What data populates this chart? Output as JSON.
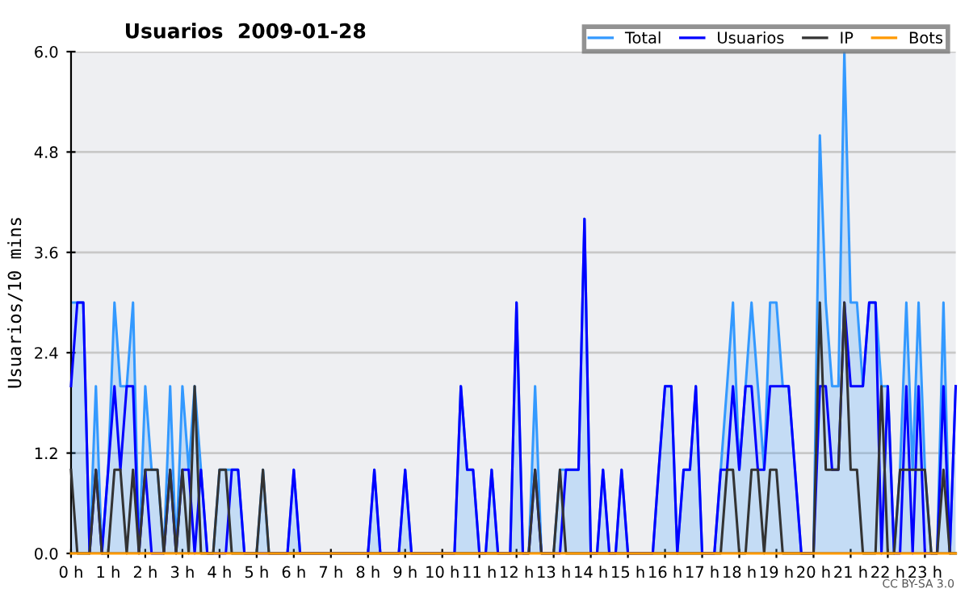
{
  "chart_data": {
    "type": "line",
    "title": "Usuarios  2009-01-28",
    "ylabel": "Usuarios/10 mins",
    "annotations": [
      "CC BY-SA 3.0"
    ],
    "x": [
      0,
      0.17,
      0.33,
      0.5,
      0.67,
      0.83,
      1,
      1.17,
      1.33,
      1.5,
      1.67,
      1.83,
      2,
      2.17,
      2.33,
      2.5,
      2.67,
      2.83,
      3,
      3.17,
      3.33,
      3.5,
      3.67,
      3.83,
      4,
      4.17,
      4.33,
      4.5,
      4.67,
      4.83,
      5,
      5.17,
      5.33,
      5.5,
      5.67,
      5.83,
      6,
      6.17,
      6.33,
      6.5,
      6.67,
      6.83,
      7,
      7.17,
      7.33,
      7.5,
      7.67,
      7.83,
      8,
      8.17,
      8.33,
      8.5,
      8.67,
      8.83,
      9,
      9.17,
      9.33,
      9.5,
      9.67,
      9.83,
      10,
      10.17,
      10.33,
      10.5,
      10.67,
      10.83,
      11,
      11.17,
      11.33,
      11.5,
      11.67,
      11.83,
      12,
      12.17,
      12.33,
      12.5,
      12.67,
      12.83,
      13,
      13.17,
      13.33,
      13.5,
      13.67,
      13.83,
      14,
      14.17,
      14.33,
      14.5,
      14.67,
      14.83,
      15,
      15.17,
      15.33,
      15.5,
      15.67,
      15.83,
      16,
      16.17,
      16.33,
      16.5,
      16.67,
      16.83,
      17,
      17.17,
      17.33,
      17.5,
      17.67,
      17.83,
      18,
      18.17,
      18.33,
      18.5,
      18.67,
      18.83,
      19,
      19.17,
      19.33,
      19.5,
      19.67,
      19.83,
      20,
      20.17,
      20.33,
      20.5,
      20.67,
      20.83,
      21,
      21.17,
      21.33,
      21.5,
      21.67,
      21.83,
      22,
      22.17,
      22.33,
      22.5,
      22.67,
      22.83,
      23,
      23.17,
      23.33,
      23.5,
      23.67,
      23.83
    ],
    "series": [
      {
        "name": "Total",
        "type": "area",
        "color": "#3399ff",
        "values": [
          3,
          3,
          3,
          0,
          2,
          0,
          1,
          3,
          2,
          2,
          3,
          0,
          2,
          1,
          1,
          0,
          2,
          0,
          2,
          1,
          2,
          1,
          0,
          0,
          1,
          1,
          1,
          1,
          0,
          0,
          0,
          1,
          0,
          0,
          0,
          0,
          1,
          0,
          0,
          0,
          0,
          0,
          0,
          0,
          0,
          0,
          0,
          0,
          0,
          1,
          0,
          0,
          0,
          0,
          1,
          0,
          0,
          0,
          0,
          0,
          0,
          0,
          0,
          2,
          1,
          1,
          0,
          0,
          1,
          0,
          0,
          0,
          3,
          0,
          0,
          2,
          0,
          0,
          0,
          1,
          1,
          1,
          1,
          4,
          0,
          0,
          1,
          0,
          0,
          1,
          0,
          0,
          0,
          0,
          0,
          1,
          2,
          2,
          0,
          1,
          1,
          2,
          0,
          0,
          0,
          1,
          2,
          3,
          1,
          2,
          3,
          2,
          1,
          3,
          3,
          2,
          2,
          1,
          0,
          0,
          0,
          5,
          3,
          2,
          2,
          6,
          3,
          3,
          2,
          3,
          3,
          2,
          2,
          0,
          1,
          3,
          1,
          3,
          1,
          0,
          0,
          3,
          0,
          2
        ]
      },
      {
        "name": "Usuarios",
        "color": "#0000ff",
        "values": [
          2,
          3,
          3,
          0,
          1,
          0,
          1,
          2,
          1,
          2,
          2,
          0,
          1,
          0,
          0,
          0,
          1,
          0,
          1,
          1,
          0,
          1,
          0,
          0,
          0,
          0,
          1,
          1,
          0,
          0,
          0,
          0,
          0,
          0,
          0,
          0,
          1,
          0,
          0,
          0,
          0,
          0,
          0,
          0,
          0,
          0,
          0,
          0,
          0,
          1,
          0,
          0,
          0,
          0,
          1,
          0,
          0,
          0,
          0,
          0,
          0,
          0,
          0,
          2,
          1,
          1,
          0,
          0,
          1,
          0,
          0,
          0,
          3,
          0,
          0,
          1,
          0,
          0,
          0,
          0,
          1,
          1,
          1,
          4,
          0,
          0,
          1,
          0,
          0,
          1,
          0,
          0,
          0,
          0,
          0,
          1,
          2,
          2,
          0,
          1,
          1,
          2,
          0,
          0,
          0,
          1,
          1,
          2,
          1,
          2,
          2,
          1,
          1,
          2,
          2,
          2,
          2,
          1,
          0,
          0,
          0,
          2,
          2,
          1,
          1,
          3,
          2,
          2,
          2,
          3,
          3,
          0,
          2,
          0,
          0,
          2,
          0,
          2,
          0,
          0,
          0,
          2,
          0,
          2
        ]
      },
      {
        "name": "IP",
        "color": "#333333",
        "values": [
          1,
          0,
          0,
          0,
          1,
          0,
          0,
          1,
          1,
          0,
          1,
          0,
          1,
          1,
          1,
          0,
          1,
          0,
          1,
          0,
          2,
          0,
          0,
          0,
          1,
          1,
          0,
          0,
          0,
          0,
          0,
          1,
          0,
          0,
          0,
          0,
          0,
          0,
          0,
          0,
          0,
          0,
          0,
          0,
          0,
          0,
          0,
          0,
          0,
          0,
          0,
          0,
          0,
          0,
          0,
          0,
          0,
          0,
          0,
          0,
          0,
          0,
          0,
          0,
          0,
          0,
          0,
          0,
          0,
          0,
          0,
          0,
          0,
          0,
          0,
          1,
          0,
          0,
          0,
          1,
          0,
          0,
          0,
          0,
          0,
          0,
          0,
          0,
          0,
          0,
          0,
          0,
          0,
          0,
          0,
          0,
          0,
          0,
          0,
          0,
          0,
          0,
          0,
          0,
          0,
          0,
          1,
          1,
          0,
          0,
          1,
          1,
          0,
          1,
          1,
          0,
          0,
          0,
          0,
          0,
          0,
          3,
          1,
          1,
          1,
          3,
          1,
          1,
          0,
          0,
          0,
          2,
          0,
          0,
          1,
          1,
          1,
          1,
          1,
          0,
          0,
          1,
          0,
          0
        ]
      },
      {
        "name": "Bots",
        "color": "#ff9900",
        "values": [
          0,
          0,
          0,
          0,
          0,
          0,
          0,
          0,
          0,
          0,
          0,
          0,
          0,
          0,
          0,
          0,
          0,
          0,
          0,
          0,
          0,
          0,
          0,
          0,
          0,
          0,
          0,
          0,
          0,
          0,
          0,
          0,
          0,
          0,
          0,
          0,
          0,
          0,
          0,
          0,
          0,
          0,
          0,
          0,
          0,
          0,
          0,
          0,
          0,
          0,
          0,
          0,
          0,
          0,
          0,
          0,
          0,
          0,
          0,
          0,
          0,
          0,
          0,
          0,
          0,
          0,
          0,
          0,
          0,
          0,
          0,
          0,
          0,
          0,
          0,
          0,
          0,
          0,
          0,
          0,
          0,
          0,
          0,
          0,
          0,
          0,
          0,
          0,
          0,
          0,
          0,
          0,
          0,
          0,
          0,
          0,
          0,
          0,
          0,
          0,
          0,
          0,
          0,
          0,
          0,
          0,
          0,
          0,
          0,
          0,
          0,
          0,
          0,
          0,
          0,
          0,
          0,
          0,
          0,
          0,
          0,
          0,
          0,
          0,
          0,
          0,
          0,
          0,
          0,
          0,
          0,
          0,
          0,
          0,
          0,
          0,
          0,
          0,
          0,
          0,
          0,
          0,
          0,
          0
        ]
      }
    ],
    "xlim": [
      0,
      23.83
    ],
    "xticks": [
      {
        "value": 0,
        "label": "0 h"
      },
      {
        "value": 1,
        "label": "1 h"
      },
      {
        "value": 2,
        "label": "2 h"
      },
      {
        "value": 3,
        "label": "3 h"
      },
      {
        "value": 4,
        "label": "4 h"
      },
      {
        "value": 5,
        "label": "5 h"
      },
      {
        "value": 6,
        "label": "6 h"
      },
      {
        "value": 7,
        "label": "7 h"
      },
      {
        "value": 8,
        "label": "8 h"
      },
      {
        "value": 9,
        "label": "9 h"
      },
      {
        "value": 10,
        "label": "10 h"
      },
      {
        "value": 11,
        "label": "11 h"
      },
      {
        "value": 12,
        "label": "12 h"
      },
      {
        "value": 13,
        "label": "13 h"
      },
      {
        "value": 14,
        "label": "14 h"
      },
      {
        "value": 15,
        "label": "15 h"
      },
      {
        "value": 16,
        "label": "16 h"
      },
      {
        "value": 17,
        "label": "17 h"
      },
      {
        "value": 18,
        "label": "18 h"
      },
      {
        "value": 19,
        "label": "19 h"
      },
      {
        "value": 20,
        "label": "20 h"
      },
      {
        "value": 21,
        "label": "21 h"
      },
      {
        "value": 22,
        "label": "22 h"
      },
      {
        "value": 23,
        "label": "23 h"
      }
    ],
    "ylim": [
      0,
      6
    ],
    "yticks": [
      {
        "value": 0,
        "label": "0.0"
      },
      {
        "value": 1.2,
        "label": "1.2"
      },
      {
        "value": 2.4,
        "label": "2.4"
      },
      {
        "value": 3.6,
        "label": "3.6"
      },
      {
        "value": 4.8,
        "label": "4.8"
      },
      {
        "value": 6,
        "label": "6.0"
      }
    ],
    "grid": "y",
    "legend": "top right",
    "marker": "none",
    "line_style": "solid"
  }
}
